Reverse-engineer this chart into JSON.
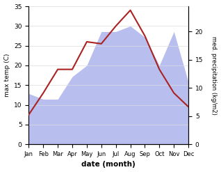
{
  "months": [
    "Jan",
    "Feb",
    "Mar",
    "Apr",
    "May",
    "Jun",
    "Jul",
    "Aug",
    "Sep",
    "Oct",
    "Nov",
    "Dec"
  ],
  "month_indices": [
    1,
    2,
    3,
    4,
    5,
    6,
    7,
    8,
    9,
    10,
    11,
    12
  ],
  "temp": [
    7.5,
    13.0,
    19.0,
    19.0,
    26.0,
    25.5,
    30.0,
    34.0,
    27.5,
    19.0,
    13.0,
    9.5
  ],
  "precip": [
    9.0,
    8.0,
    8.0,
    12.0,
    14.0,
    20.0,
    20.0,
    21.0,
    19.0,
    14.0,
    20.0,
    11.0
  ],
  "temp_color": "#aa2222",
  "precip_fill_color": "#b8bfee",
  "temp_ylim": [
    0,
    35
  ],
  "precip_ylim": [
    0,
    24.5
  ],
  "temp_yticks": [
    0,
    5,
    10,
    15,
    20,
    25,
    30,
    35
  ],
  "precip_yticks": [
    0,
    5,
    10,
    15,
    20
  ],
  "xlabel": "date (month)",
  "ylabel_left": "max temp (C)",
  "ylabel_right": "med. precipitation (kg/m2)",
  "bg_color": "#ffffff"
}
